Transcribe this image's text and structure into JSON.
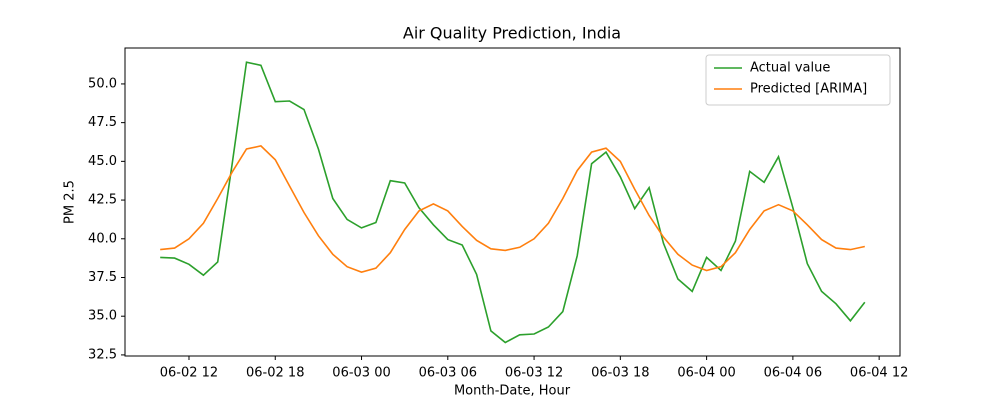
{
  "chart_data": {
    "type": "line",
    "title": "Air Quality Prediction, India",
    "xlabel": "Month-Date, Hour",
    "ylabel": "PM 2.5",
    "x": [
      "06-02 10",
      "06-02 11",
      "06-02 12",
      "06-02 13",
      "06-02 14",
      "06-02 15",
      "06-02 16",
      "06-02 17",
      "06-02 18",
      "06-02 19",
      "06-02 20",
      "06-02 21",
      "06-02 22",
      "06-02 23",
      "06-03 00",
      "06-03 01",
      "06-03 02",
      "06-03 03",
      "06-03 04",
      "06-03 05",
      "06-03 06",
      "06-03 07",
      "06-03 08",
      "06-03 09",
      "06-03 10",
      "06-03 11",
      "06-03 12",
      "06-03 13",
      "06-03 14",
      "06-03 15",
      "06-03 16",
      "06-03 17",
      "06-03 18",
      "06-03 19",
      "06-03 20",
      "06-03 21",
      "06-03 22",
      "06-03 23",
      "06-04 00",
      "06-04 01",
      "06-04 02",
      "06-04 03",
      "06-04 04",
      "06-04 05",
      "06-04 06",
      "06-04 07",
      "06-04 08",
      "06-04 09",
      "06-04 10",
      "06-04 11"
    ],
    "series": [
      {
        "name": "Actual value",
        "color": "#2ca02c",
        "values": [
          38.8,
          38.75,
          38.35,
          37.65,
          38.5,
          44.8,
          51.4,
          51.2,
          48.85,
          48.9,
          48.35,
          45.8,
          42.6,
          41.25,
          40.7,
          41.05,
          43.75,
          43.6,
          42.0,
          40.9,
          39.95,
          39.6,
          37.7,
          34.05,
          33.3,
          33.8,
          33.85,
          34.3,
          35.3,
          38.9,
          44.85,
          45.6,
          44.0,
          41.95,
          43.3,
          39.7,
          37.4,
          36.6,
          38.8,
          37.95,
          39.85,
          44.35,
          43.65,
          45.3,
          42.0,
          38.4,
          36.6,
          35.8,
          34.7,
          35.9
        ]
      },
      {
        "name": "Predicted [ARIMA]",
        "color": "#ff7f0e",
        "values": [
          39.3,
          39.4,
          40.0,
          41.0,
          42.6,
          44.3,
          45.8,
          46.0,
          45.1,
          43.4,
          41.7,
          40.2,
          39.0,
          38.2,
          37.85,
          38.1,
          39.1,
          40.6,
          41.8,
          42.25,
          41.8,
          40.8,
          39.9,
          39.35,
          39.25,
          39.45,
          40.0,
          41.0,
          42.6,
          44.4,
          45.6,
          45.85,
          45.0,
          43.2,
          41.5,
          40.1,
          39.0,
          38.3,
          37.95,
          38.2,
          39.1,
          40.6,
          41.8,
          42.2,
          41.8,
          40.9,
          39.95,
          39.4,
          39.3,
          39.5
        ]
      }
    ],
    "xlim": [
      "06-02 07:33",
      "06-04 13:27"
    ],
    "xticks": [
      "06-02 12",
      "06-02 18",
      "06-03 00",
      "06-03 06",
      "06-03 12",
      "06-03 18",
      "06-04 00",
      "06-04 06",
      "06-04 12"
    ],
    "ylim": [
      32.43,
      52.32
    ],
    "yticks": [
      {
        "value": 32.5,
        "label": "32.5"
      },
      {
        "value": 35,
        "label": "35.0"
      },
      {
        "value": 37.5,
        "label": "37.5"
      },
      {
        "value": 40,
        "label": "40.0"
      },
      {
        "value": 42.5,
        "label": "42.5"
      },
      {
        "value": 45,
        "label": "45.0"
      },
      {
        "value": 47.5,
        "label": "47.5"
      },
      {
        "value": 50,
        "label": "50.0"
      }
    ],
    "legend": "upper right"
  }
}
